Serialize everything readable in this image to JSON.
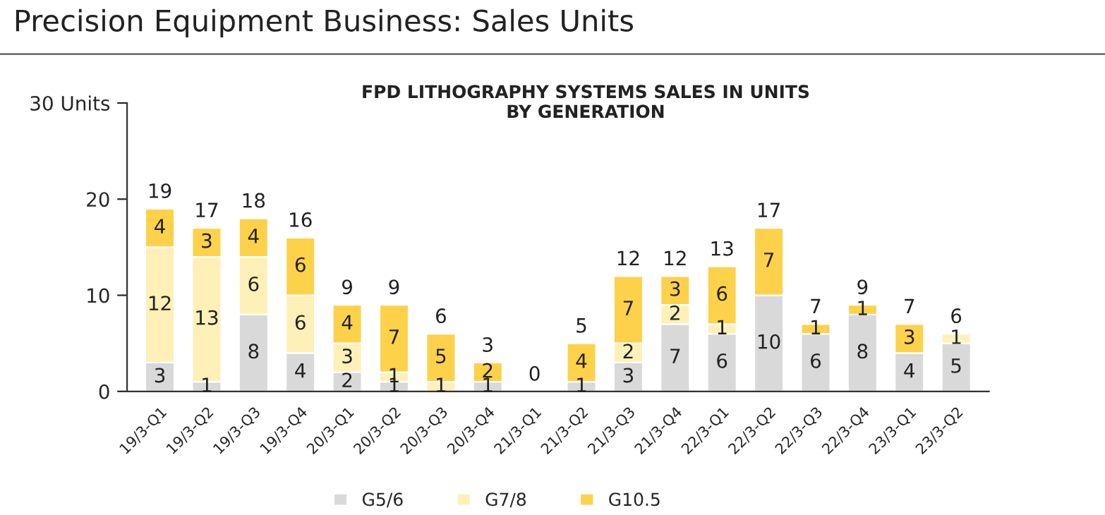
{
  "chart_data": {
    "type": "bar",
    "stacked": true,
    "title": "Precision Equipment Business: Sales Units",
    "subtitle": "FPD LITHOGRAPHY SYSTEMS SALES IN UNITS\nBY GENERATION",
    "categories": [
      "19/3-Q1",
      "19/3-Q2",
      "19/3-Q3",
      "19/3-Q4",
      "20/3-Q1",
      "20/3-Q2",
      "20/3-Q3",
      "20/3-Q4",
      "21/3-Q1",
      "21/3-Q2",
      "21/3-Q3",
      "21/3-Q4",
      "22/3-Q1",
      "22/3-Q2",
      "22/3-Q3",
      "22/3-Q4",
      "23/3-Q1",
      "23/3-Q2"
    ],
    "series": [
      {
        "name": "G5/6",
        "color": "#d9d9d9",
        "values": [
          3,
          1,
          8,
          4,
          2,
          1,
          0,
          1,
          0,
          1,
          3,
          7,
          6,
          10,
          6,
          8,
          4,
          5
        ],
        "value_labels": [
          "3",
          "1",
          "8",
          "4",
          "2",
          "1",
          null,
          "1",
          null,
          "1",
          "3",
          "7",
          "6",
          "10",
          "6",
          "8",
          "4",
          "5"
        ]
      },
      {
        "name": "G7/8",
        "color": "#fff0b8",
        "values": [
          12,
          13,
          6,
          6,
          3,
          1,
          1,
          0,
          0,
          0,
          2,
          2,
          1,
          0,
          0,
          0,
          0,
          1
        ],
        "value_labels": [
          "12",
          "13",
          "6",
          "6",
          "3",
          "1",
          "1",
          null,
          null,
          null,
          "2",
          "2",
          "1",
          null,
          null,
          null,
          null,
          "1"
        ]
      },
      {
        "name": "G10.5",
        "color": "#fdd24a",
        "values": [
          4,
          3,
          4,
          6,
          4,
          7,
          5,
          2,
          0,
          4,
          7,
          3,
          6,
          7,
          1,
          1,
          3,
          0
        ],
        "value_labels": [
          "4",
          "3",
          "4",
          "6",
          "4",
          "7",
          "5",
          "2",
          null,
          "4",
          "7",
          "3",
          "6",
          "7",
          "1",
          "1",
          "3",
          null
        ]
      }
    ],
    "totals": [
      "19",
      "17",
      "18",
      "16",
      "9",
      "9",
      "6",
      "3",
      "0",
      "5",
      "12",
      "12",
      "13",
      "17",
      "7",
      "9",
      "7",
      "6"
    ],
    "ylim": [
      0,
      30
    ],
    "yticks": [
      0,
      10,
      20,
      {
        "value": 30,
        "label": "30 Units"
      }
    ],
    "grid": false,
    "legend": "bottom"
  }
}
